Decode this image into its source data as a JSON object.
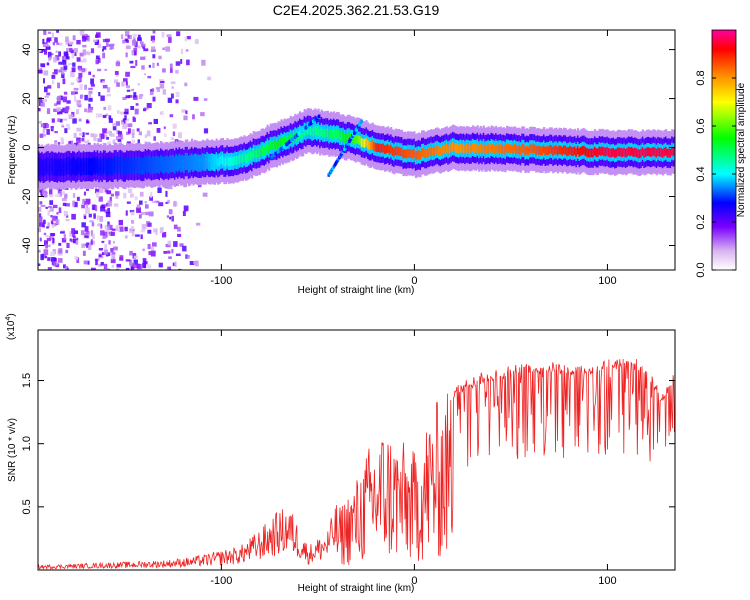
{
  "figure_title": "C2E4.2025.362.21.53.G19",
  "chart_data": [
    {
      "type": "heatmap",
      "title": "C2E4.2025.362.21.53.G19",
      "xlabel": "Height of straight line (km)",
      "ylabel": "Frequency (Hz)",
      "xlim": [
        -195,
        135
      ],
      "ylim": [
        -50,
        48
      ],
      "xticks": [
        -100,
        0,
        100
      ],
      "yticks": [
        -40,
        -20,
        0,
        20,
        40
      ],
      "colorbar": {
        "label": "Normalized spectral amplitude",
        "range": [
          0.0,
          1.0
        ],
        "ticks": [
          0.0,
          0.2,
          0.4,
          0.6,
          0.8
        ],
        "colormap": [
          "#ffffff",
          "#d8b4f0",
          "#7a00ff",
          "#0000ff",
          "#00ffff",
          "#00ff00",
          "#ffff00",
          "#ff8000",
          "#ff0000",
          "#ff00a0"
        ]
      },
      "ridge": {
        "description_points": [
          {
            "x": -195,
            "freq": -8,
            "amp": 0.25
          },
          {
            "x": -150,
            "freq": -7.5,
            "amp": 0.3
          },
          {
            "x": -110,
            "freq": -6,
            "amp": 0.35
          },
          {
            "x": -90,
            "freq": -5,
            "amp": 0.45
          },
          {
            "x": -70,
            "freq": 2,
            "amp": 0.55
          },
          {
            "x": -55,
            "freq": 7,
            "amp": 0.45
          },
          {
            "x": -40,
            "freq": 5,
            "amp": 0.5
          },
          {
            "x": -30,
            "freq": 3,
            "amp": 0.6
          },
          {
            "x": -20,
            "freq": 0,
            "amp": 0.9
          },
          {
            "x": 0,
            "freq": -3,
            "amp": 0.85
          },
          {
            "x": 20,
            "freq": 0,
            "amp": 0.8
          },
          {
            "x": 60,
            "freq": -1,
            "amp": 0.85
          },
          {
            "x": 100,
            "freq": -2,
            "amp": 0.95
          },
          {
            "x": 135,
            "freq": -2,
            "amp": 0.95
          }
        ]
      }
    },
    {
      "type": "line",
      "title": "",
      "xlabel": "Height of straight line (km)",
      "ylabel": "SNR (10 * v/v)",
      "y_multiplier_label": "(x10",
      "y_multiplier_exp": "4",
      "y_multiplier_close": ")",
      "xlim": [
        -195,
        135
      ],
      "ylim": [
        0,
        19000
      ],
      "xticks": [
        -100,
        0,
        100
      ],
      "yticks": [
        5000,
        10000,
        15000
      ],
      "ytick_labels": [
        "0.5",
        "1.0",
        "1.5"
      ],
      "color": "#ee2222",
      "series": [
        {
          "name": "SNR",
          "x": [
            -195,
            -170,
            -150,
            -130,
            -115,
            -100,
            -90,
            -80,
            -72,
            -65,
            -55,
            -45,
            -38,
            -30,
            -22,
            -15,
            -8,
            0,
            8,
            15,
            25,
            35,
            50,
            70,
            90,
            100,
            110,
            120,
            128,
            135
          ],
          "values": [
            300,
            400,
            500,
            600,
            800,
            1200,
            1500,
            2500,
            3500,
            4000,
            1500,
            2500,
            5000,
            7000,
            10000,
            11000,
            10000,
            9000,
            12000,
            13500,
            14500,
            15200,
            15800,
            16000,
            15800,
            16200,
            16500,
            16000,
            13500,
            15500
          ]
        }
      ]
    }
  ]
}
